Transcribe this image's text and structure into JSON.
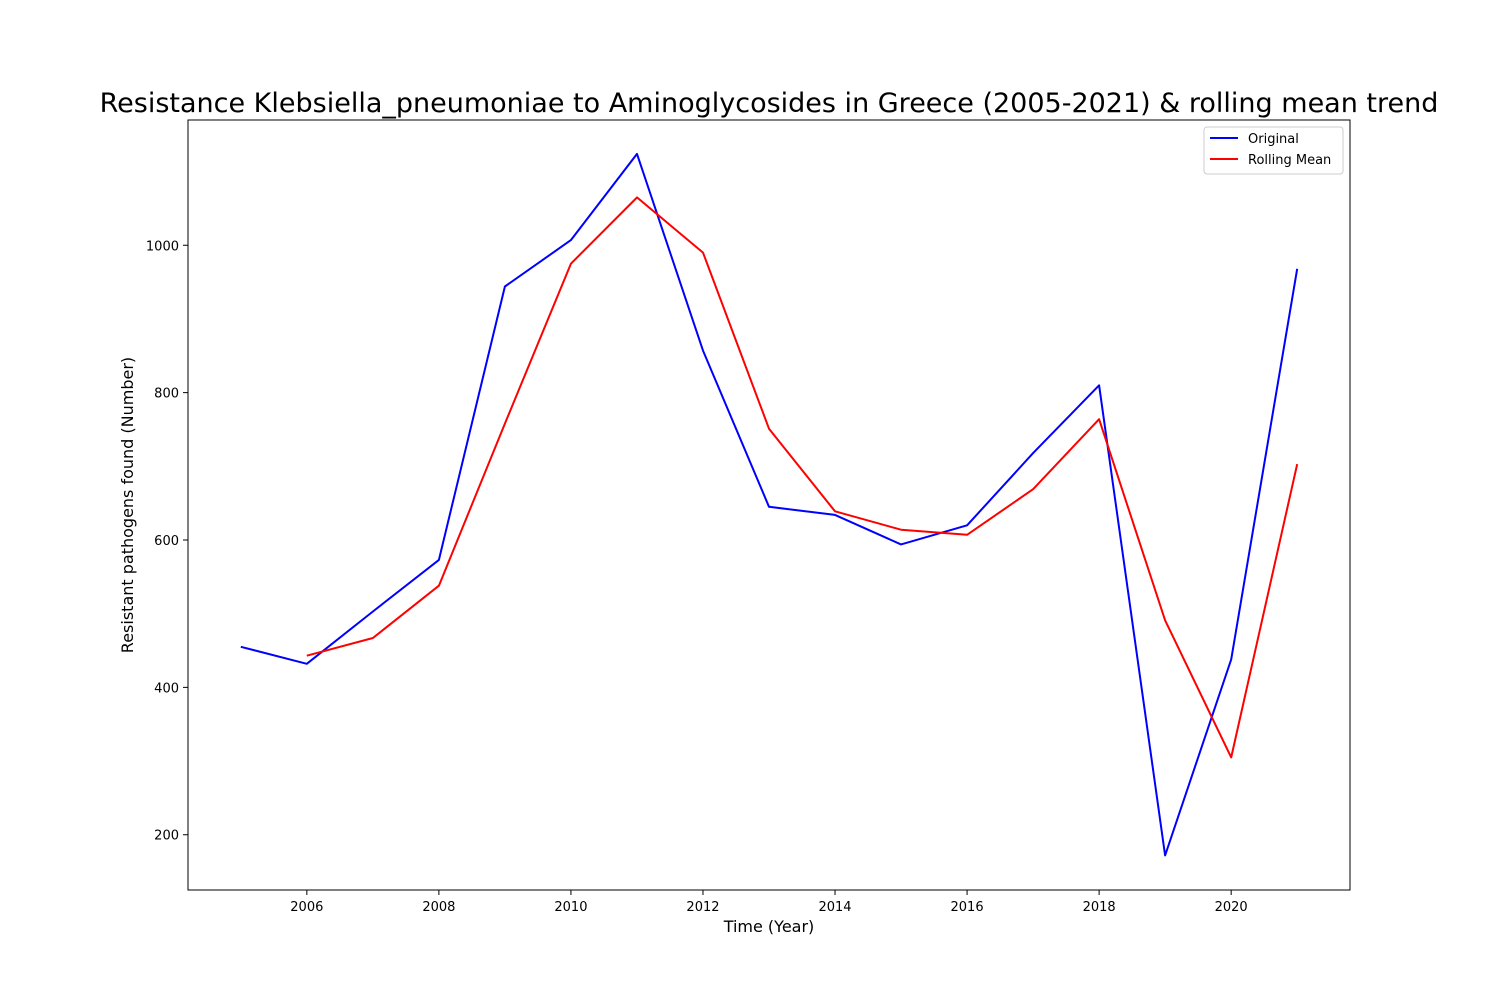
{
  "chart_data": {
    "type": "line",
    "title": "Resistance Klebsiella_pneumoniae to Aminoglycosides in Greece (2005-2021) & rolling mean trend",
    "xlabel": "Time (Year)",
    "ylabel": "Resistant pathogens found (Number)",
    "xlim": [
      2004.2,
      2021.8
    ],
    "ylim": [
      125,
      1170
    ],
    "xticks": [
      2006,
      2008,
      2010,
      2012,
      2014,
      2016,
      2018,
      2020
    ],
    "yticks": [
      200,
      400,
      600,
      800,
      1000
    ],
    "grid": false,
    "legend_position": "top-right",
    "series": [
      {
        "name": "Original",
        "color": "#0000ff",
        "x": [
          2005,
          2006,
          2007,
          2008,
          2009,
          2010,
          2011,
          2012,
          2013,
          2014,
          2015,
          2016,
          2017,
          2018,
          2019,
          2020,
          2021
        ],
        "values": [
          455,
          432,
          503,
          573,
          944,
          1007,
          1124,
          857,
          645,
          634,
          594,
          620,
          718,
          810,
          172,
          438,
          968
        ]
      },
      {
        "name": "Rolling Mean",
        "color": "#ff0000",
        "x": [
          2006,
          2007,
          2008,
          2009,
          2010,
          2011,
          2012,
          2013,
          2014,
          2015,
          2016,
          2017,
          2018,
          2019,
          2020,
          2021
        ],
        "values": [
          443,
          467,
          538,
          758,
          975,
          1065,
          990,
          751,
          639,
          614,
          607,
          669,
          764,
          491,
          305,
          703
        ]
      }
    ]
  }
}
